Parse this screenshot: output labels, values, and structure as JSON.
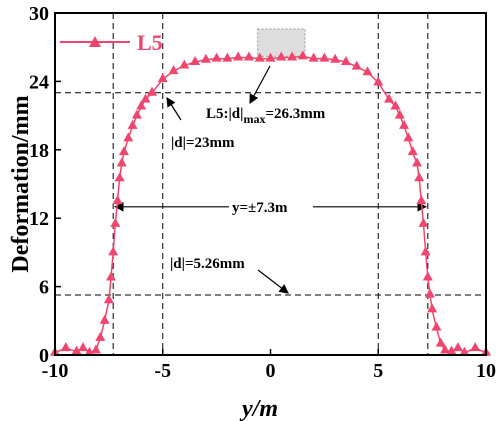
{
  "chart_data": {
    "type": "line",
    "xlabel": "y/m",
    "ylabel": "Deformation/mm",
    "xlim": [
      -10,
      10
    ],
    "ylim": [
      0,
      30
    ],
    "xticks": [
      "-10",
      "-5",
      "0",
      "5",
      "10"
    ],
    "yticks": [
      "0",
      "6",
      "12",
      "18",
      "24",
      "30"
    ],
    "grid": false,
    "legend_position": "top-left",
    "series": [
      {
        "name": "L5",
        "color": "#f0466e",
        "marker": "triangle",
        "x": [
          -10,
          -9.5,
          -9,
          -8.7,
          -8.4,
          -8.1,
          -7.9,
          -7.7,
          -7.5,
          -7.4,
          -7.3,
          -7.2,
          -7.1,
          -7.0,
          -6.9,
          -6.8,
          -6.6,
          -6.4,
          -6.2,
          -6.0,
          -5.8,
          -5.5,
          -5.0,
          -4.5,
          -4.0,
          -3.5,
          -3.0,
          -2.5,
          -2.0,
          -1.5,
          -1.0,
          -0.5,
          0.0,
          0.5,
          1.0,
          1.5,
          2.0,
          2.5,
          3.0,
          3.5,
          4.0,
          4.5,
          5.0,
          5.5,
          5.8,
          6.0,
          6.2,
          6.4,
          6.6,
          6.8,
          6.9,
          7.0,
          7.1,
          7.2,
          7.3,
          7.4,
          7.5,
          7.7,
          7.9,
          8.1,
          8.4,
          8.7,
          9.0,
          9.5,
          10
        ],
        "values": [
          0.2,
          0.6,
          0.3,
          0.6,
          0.2,
          0.4,
          1.5,
          3.0,
          4.8,
          6.8,
          9.0,
          11.5,
          13.5,
          15.5,
          16.8,
          17.8,
          19.0,
          20.1,
          21.0,
          21.8,
          22.4,
          23.0,
          24.2,
          24.9,
          25.4,
          25.7,
          25.9,
          26.0,
          26.0,
          26.1,
          26.1,
          26.0,
          26.0,
          26.1,
          26.1,
          26.2,
          26.0,
          26.0,
          25.9,
          25.7,
          25.3,
          24.8,
          23.9,
          22.4,
          21.8,
          21.0,
          20.1,
          19.0,
          17.8,
          16.8,
          15.5,
          13.5,
          11.5,
          9.0,
          6.8,
          5.3,
          4.0,
          2.4,
          1.0,
          0.4,
          0.3,
          0.6,
          0.2,
          0.6,
          0.2
        ]
      }
    ],
    "annotations": {
      "max_label": "L5:|d|",
      "max_sub": "max",
      "max_value": "=26.3mm",
      "d23": "|d|=23mm",
      "range": "y=±7.3m",
      "d526": "|d|=5.26mm"
    },
    "reference_lines": {
      "horizontal": [
        23,
        5.26
      ],
      "vertical": [
        -7.3,
        -5,
        5,
        7.3
      ],
      "range_arrow_y": 13,
      "max_box": {
        "x": [
          -0.6,
          1.6
        ],
        "y": [
          26.2,
          28.6
        ]
      }
    }
  }
}
